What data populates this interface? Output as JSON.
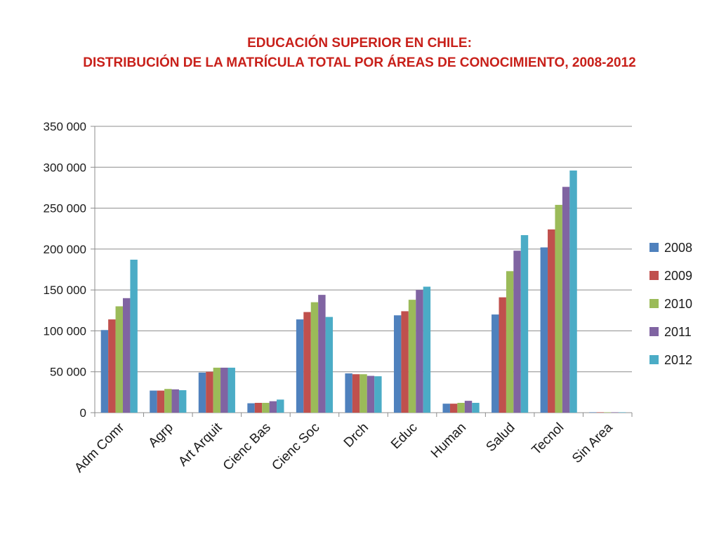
{
  "chart_data": {
    "type": "bar",
    "title": "EDUCACIÓN SUPERIOR EN CHILE:",
    "subtitle": "DISTRIBUCIÓN DE LA MATRÍCULA TOTAL POR ÁREAS DE CONOCIMIENTO, 2008-2012",
    "xlabel": "",
    "ylabel": "",
    "ylim": [
      0,
      350000
    ],
    "yticks": [
      0,
      50000,
      100000,
      150000,
      200000,
      250000,
      300000,
      350000
    ],
    "ytick_labels": [
      "0",
      "50 000",
      "100 000",
      "150 000",
      "200 000",
      "250 000",
      "300 000",
      "350 000"
    ],
    "grid": true,
    "legend_position": "right",
    "categories": [
      "Adm Comr",
      "Agrp",
      "Art Arquit",
      "Cienc Bas",
      "Cienc Soc",
      "Drch",
      "Educ",
      "Human",
      "Salud",
      "Tecnol",
      "Sin Area"
    ],
    "series": [
      {
        "name": "2008",
        "color": "#4f81bd",
        "values": [
          101000,
          27000,
          49000,
          11500,
          114000,
          48000,
          119000,
          11000,
          120000,
          202000,
          500
        ]
      },
      {
        "name": "2009",
        "color": "#c0504d",
        "values": [
          114000,
          27000,
          50000,
          12000,
          123000,
          47000,
          124000,
          11000,
          141000,
          224000,
          500
        ]
      },
      {
        "name": "2010",
        "color": "#9bbb59",
        "values": [
          130000,
          29000,
          55000,
          12000,
          135000,
          47000,
          138000,
          12000,
          173000,
          254000,
          500
        ]
      },
      {
        "name": "2011",
        "color": "#8064a2",
        "values": [
          140000,
          28500,
          55000,
          14000,
          144000,
          45000,
          150000,
          14500,
          198000,
          276000,
          500
        ]
      },
      {
        "name": "2012",
        "color": "#4bacc6",
        "values": [
          187000,
          27500,
          55000,
          16000,
          117000,
          44500,
          154000,
          12000,
          217000,
          296000,
          500
        ]
      }
    ]
  }
}
